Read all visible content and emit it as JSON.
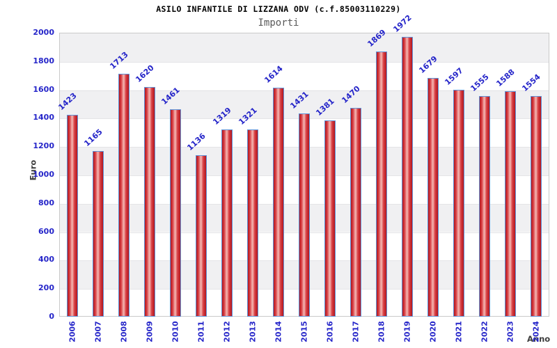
{
  "title": "ASILO INFANTILE DI LIZZANA ODV (c.f.85003110229)",
  "subtitle": "Importi",
  "chart_data": {
    "type": "bar",
    "title": "ASILO INFANTILE DI LIZZANA ODV (c.f.85003110229)",
    "subtitle": "Importi",
    "xlabel": "Anno",
    "ylabel": "Euro",
    "categories": [
      "2006",
      "2007",
      "2008",
      "2009",
      "2010",
      "2011",
      "2012",
      "2013",
      "2014",
      "2015",
      "2016",
      "2017",
      "2018",
      "2019",
      "2020",
      "2021",
      "2022",
      "2023",
      "2024"
    ],
    "values": [
      1423,
      1165,
      1713,
      1620,
      1461,
      1136,
      1319,
      1321,
      1614,
      1431,
      1381,
      1470,
      1869,
      1972,
      1679,
      1597,
      1555,
      1588,
      1554
    ],
    "ylim": [
      0,
      2000
    ],
    "yticks": [
      0,
      200,
      400,
      600,
      800,
      1000,
      1200,
      1400,
      1600,
      1800,
      2000
    ],
    "grid": true,
    "legend": "none",
    "value_labels_rotated_deg": -42,
    "xtick_labels_rotated_deg": -90,
    "colors": {
      "bar_edge": "#b2161d",
      "bar_mid": "#d94045",
      "bar_center_highlight": "#f2afab",
      "bar_border": "#5f93d8",
      "tick_label_blue": "#2525c9",
      "axis_title_gray": "#3d3d3d",
      "subtitle_gray": "#5a5a5a",
      "band_gray": "#f0f0f2",
      "band_white": "#ffffff",
      "plot_border": "#c9c9c9",
      "gridline": "#e4e4e7"
    }
  }
}
